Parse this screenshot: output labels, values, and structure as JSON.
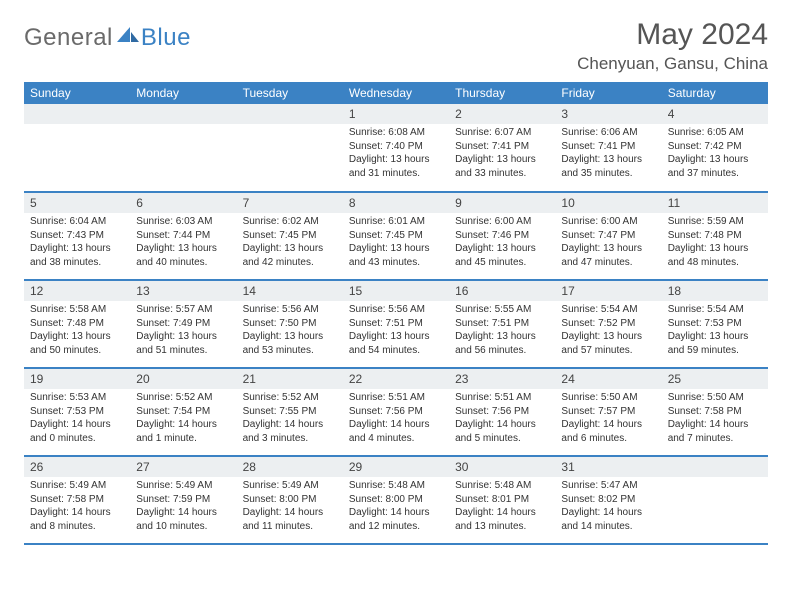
{
  "logo": {
    "general": "General",
    "blue": "Blue"
  },
  "header": {
    "month_title": "May 2024",
    "location": "Chenyuan, Gansu, China"
  },
  "colors": {
    "brand_blue": "#3b82c4",
    "header_text": "#ffffff",
    "daynum_bg": "#eceff1",
    "text": "#333333",
    "logo_gray": "#6a6a6a",
    "page_bg": "#ffffff"
  },
  "weekdays": [
    "Sunday",
    "Monday",
    "Tuesday",
    "Wednesday",
    "Thursday",
    "Friday",
    "Saturday"
  ],
  "layout": {
    "first_weekday_index": 3,
    "days_in_month": 31,
    "cols": 7,
    "rows": 5
  },
  "days": [
    {
      "n": 1,
      "sunrise": "6:08 AM",
      "sunset": "7:40 PM",
      "daylight": "13 hours and 31 minutes."
    },
    {
      "n": 2,
      "sunrise": "6:07 AM",
      "sunset": "7:41 PM",
      "daylight": "13 hours and 33 minutes."
    },
    {
      "n": 3,
      "sunrise": "6:06 AM",
      "sunset": "7:41 PM",
      "daylight": "13 hours and 35 minutes."
    },
    {
      "n": 4,
      "sunrise": "6:05 AM",
      "sunset": "7:42 PM",
      "daylight": "13 hours and 37 minutes."
    },
    {
      "n": 5,
      "sunrise": "6:04 AM",
      "sunset": "7:43 PM",
      "daylight": "13 hours and 38 minutes."
    },
    {
      "n": 6,
      "sunrise": "6:03 AM",
      "sunset": "7:44 PM",
      "daylight": "13 hours and 40 minutes."
    },
    {
      "n": 7,
      "sunrise": "6:02 AM",
      "sunset": "7:45 PM",
      "daylight": "13 hours and 42 minutes."
    },
    {
      "n": 8,
      "sunrise": "6:01 AM",
      "sunset": "7:45 PM",
      "daylight": "13 hours and 43 minutes."
    },
    {
      "n": 9,
      "sunrise": "6:00 AM",
      "sunset": "7:46 PM",
      "daylight": "13 hours and 45 minutes."
    },
    {
      "n": 10,
      "sunrise": "6:00 AM",
      "sunset": "7:47 PM",
      "daylight": "13 hours and 47 minutes."
    },
    {
      "n": 11,
      "sunrise": "5:59 AM",
      "sunset": "7:48 PM",
      "daylight": "13 hours and 48 minutes."
    },
    {
      "n": 12,
      "sunrise": "5:58 AM",
      "sunset": "7:48 PM",
      "daylight": "13 hours and 50 minutes."
    },
    {
      "n": 13,
      "sunrise": "5:57 AM",
      "sunset": "7:49 PM",
      "daylight": "13 hours and 51 minutes."
    },
    {
      "n": 14,
      "sunrise": "5:56 AM",
      "sunset": "7:50 PM",
      "daylight": "13 hours and 53 minutes."
    },
    {
      "n": 15,
      "sunrise": "5:56 AM",
      "sunset": "7:51 PM",
      "daylight": "13 hours and 54 minutes."
    },
    {
      "n": 16,
      "sunrise": "5:55 AM",
      "sunset": "7:51 PM",
      "daylight": "13 hours and 56 minutes."
    },
    {
      "n": 17,
      "sunrise": "5:54 AM",
      "sunset": "7:52 PM",
      "daylight": "13 hours and 57 minutes."
    },
    {
      "n": 18,
      "sunrise": "5:54 AM",
      "sunset": "7:53 PM",
      "daylight": "13 hours and 59 minutes."
    },
    {
      "n": 19,
      "sunrise": "5:53 AM",
      "sunset": "7:53 PM",
      "daylight": "14 hours and 0 minutes."
    },
    {
      "n": 20,
      "sunrise": "5:52 AM",
      "sunset": "7:54 PM",
      "daylight": "14 hours and 1 minute."
    },
    {
      "n": 21,
      "sunrise": "5:52 AM",
      "sunset": "7:55 PM",
      "daylight": "14 hours and 3 minutes."
    },
    {
      "n": 22,
      "sunrise": "5:51 AM",
      "sunset": "7:56 PM",
      "daylight": "14 hours and 4 minutes."
    },
    {
      "n": 23,
      "sunrise": "5:51 AM",
      "sunset": "7:56 PM",
      "daylight": "14 hours and 5 minutes."
    },
    {
      "n": 24,
      "sunrise": "5:50 AM",
      "sunset": "7:57 PM",
      "daylight": "14 hours and 6 minutes."
    },
    {
      "n": 25,
      "sunrise": "5:50 AM",
      "sunset": "7:58 PM",
      "daylight": "14 hours and 7 minutes."
    },
    {
      "n": 26,
      "sunrise": "5:49 AM",
      "sunset": "7:58 PM",
      "daylight": "14 hours and 8 minutes."
    },
    {
      "n": 27,
      "sunrise": "5:49 AM",
      "sunset": "7:59 PM",
      "daylight": "14 hours and 10 minutes."
    },
    {
      "n": 28,
      "sunrise": "5:49 AM",
      "sunset": "8:00 PM",
      "daylight": "14 hours and 11 minutes."
    },
    {
      "n": 29,
      "sunrise": "5:48 AM",
      "sunset": "8:00 PM",
      "daylight": "14 hours and 12 minutes."
    },
    {
      "n": 30,
      "sunrise": "5:48 AM",
      "sunset": "8:01 PM",
      "daylight": "14 hours and 13 minutes."
    },
    {
      "n": 31,
      "sunrise": "5:47 AM",
      "sunset": "8:02 PM",
      "daylight": "14 hours and 14 minutes."
    }
  ],
  "labels": {
    "sunrise": "Sunrise:",
    "sunset": "Sunset:",
    "daylight": "Daylight:"
  }
}
